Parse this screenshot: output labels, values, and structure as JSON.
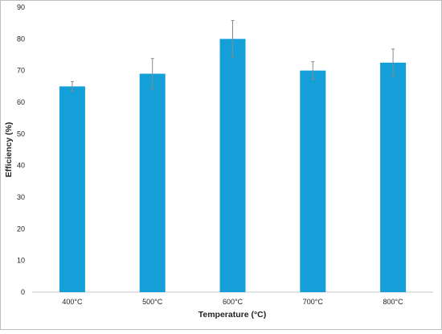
{
  "chart_data": {
    "type": "bar",
    "categories": [
      "400°C",
      "500°C",
      "600°C",
      "700°C",
      "800°C"
    ],
    "series": [
      {
        "values": [
          65,
          69,
          80,
          70,
          72.5
        ],
        "error": [
          1.5,
          4.8,
          5.8,
          2.8,
          4.3
        ],
        "color": "#159fd8"
      }
    ],
    "xlabel": "Temperature (°C)",
    "ylabel": "Efficiency (%)",
    "ylim": [
      0,
      90
    ],
    "yticks": [
      0,
      10,
      20,
      30,
      40,
      50,
      60,
      70,
      80,
      90
    ],
    "grid": false,
    "error_bar_color": "#8a8a8a",
    "frame_color": "#bfbfbf",
    "axis_color": "#c8c8c8"
  }
}
